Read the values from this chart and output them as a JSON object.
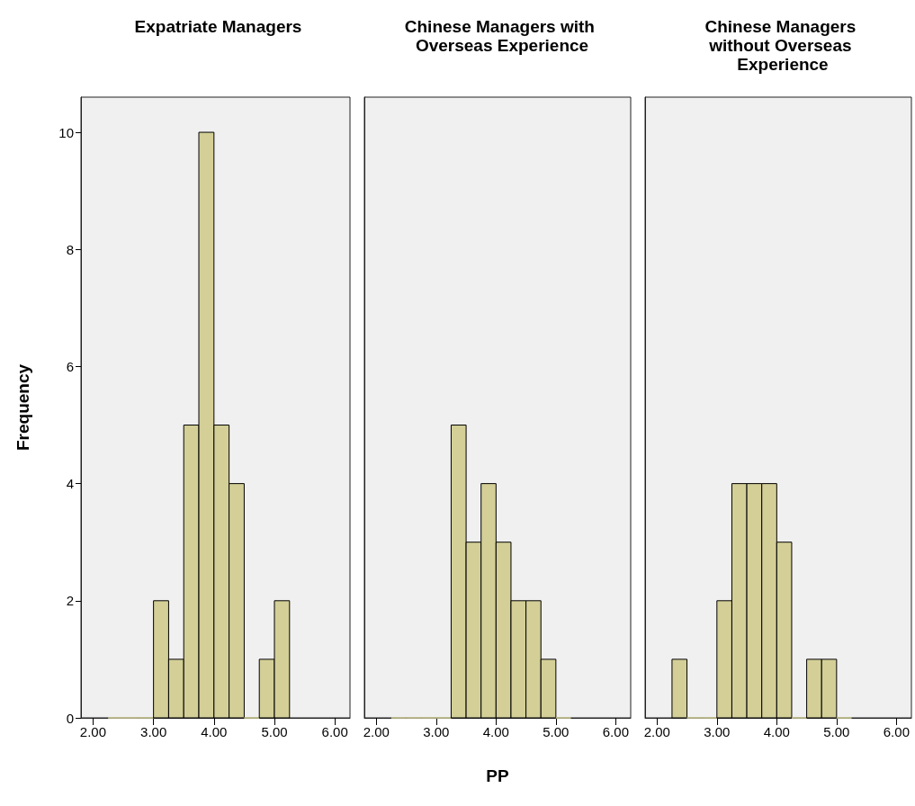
{
  "chart_data": [
    {
      "type": "histogram",
      "title": "Expatriate Managers",
      "ylabel": "Frequency",
      "bins": [
        2.25,
        2.5,
        2.75,
        3.0,
        3.25,
        3.5,
        3.75,
        4.0,
        4.25,
        4.5,
        4.75,
        5.0,
        5.25
      ],
      "values": [
        0,
        0,
        0,
        2,
        1,
        5,
        10,
        5,
        4,
        0,
        1,
        2
      ],
      "color": "#d3cf97",
      "xlim": [
        1.8,
        6.25
      ],
      "xticks": [
        {
          "value": 2,
          "label": "2.00"
        },
        {
          "value": 3,
          "label": "3.00"
        },
        {
          "value": 4,
          "label": "4.00"
        },
        {
          "value": 5,
          "label": "5.00"
        },
        {
          "value": 6,
          "label": "6.00"
        }
      ],
      "ylim": [
        0,
        10.6
      ],
      "yticks": [
        0,
        2,
        4,
        6,
        8,
        10
      ]
    },
    {
      "type": "histogram",
      "title": "Chinese Managers with Overseas Experience",
      "xlabel": "PP",
      "bins": [
        2.25,
        2.5,
        2.75,
        3.0,
        3.25,
        3.5,
        3.75,
        4.0,
        4.25,
        4.5,
        4.75,
        5.0,
        5.25
      ],
      "values": [
        0,
        0,
        0,
        0,
        5,
        3,
        4,
        3,
        2,
        2,
        1,
        0
      ],
      "color": "#d3cf97",
      "xlim": [
        1.8,
        6.25
      ],
      "xticks": [
        {
          "value": 2,
          "label": "2.00"
        },
        {
          "value": 3,
          "label": "3.00"
        },
        {
          "value": 4,
          "label": "4.00"
        },
        {
          "value": 5,
          "label": "5.00"
        },
        {
          "value": 6,
          "label": "6.00"
        }
      ],
      "ylim": [
        0,
        10.6
      ],
      "yticks": [
        0,
        2,
        4,
        6,
        8,
        10
      ],
      "tick_labels": "x"
    },
    {
      "type": "histogram",
      "title": "Chinese Managers without Overseas Experience",
      "bins": [
        2.25,
        2.5,
        2.75,
        3.0,
        3.25,
        3.5,
        3.75,
        4.0,
        4.25,
        4.5,
        4.75,
        5.0,
        5.25
      ],
      "values": [
        1,
        0,
        0,
        2,
        4,
        4,
        4,
        3,
        0,
        1,
        1,
        0
      ],
      "color": "#d3cf97",
      "xlim": [
        1.8,
        6.25
      ],
      "xticks": [
        {
          "value": 2,
          "label": "2.00"
        },
        {
          "value": 3,
          "label": "3.00"
        },
        {
          "value": 4,
          "label": "4.00"
        },
        {
          "value": 5,
          "label": "5.00"
        },
        {
          "value": 6,
          "label": "6.00"
        }
      ],
      "ylim": [
        0,
        10.6
      ],
      "yticks": [
        0,
        2,
        4,
        6,
        8,
        10
      ],
      "tick_labels": "x"
    }
  ]
}
